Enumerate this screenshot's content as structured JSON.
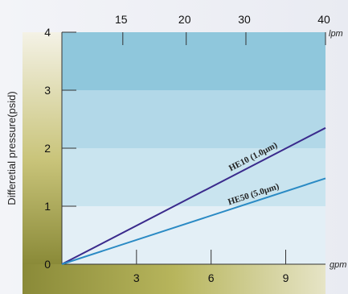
{
  "chart_data": {
    "type": "line",
    "ylabel": "Differetial pressure(psid)",
    "x_bottom": {
      "unit": "gpm",
      "range": [
        0,
        10.6
      ],
      "ticks": [
        3,
        6,
        9
      ]
    },
    "x_top": {
      "unit": "lpm",
      "ticks": [
        15,
        20,
        30,
        40
      ],
      "tick_gpm_positions": [
        2.45,
        5.0,
        7.4,
        10.6
      ]
    },
    "ylim": [
      0,
      4
    ],
    "yticks": [
      0,
      1,
      2,
      3,
      4
    ],
    "series": [
      {
        "name": "HE10 (1.0μm)",
        "color": "#3a2a8c",
        "x": [
          0,
          10.6
        ],
        "y": [
          0,
          2.35
        ]
      },
      {
        "name": "HE50 (5.0μm)",
        "color": "#2a8ac4",
        "x": [
          0,
          10.6
        ],
        "y": [
          0,
          1.48
        ]
      }
    ],
    "band_colors": [
      "#e3eff6",
      "#c9e4ef",
      "#b2d8e8",
      "#8fc7dc"
    ],
    "left_strip_color": "#8a8a38",
    "bottom_strip_color": "#9a9a3a",
    "grid": false
  }
}
